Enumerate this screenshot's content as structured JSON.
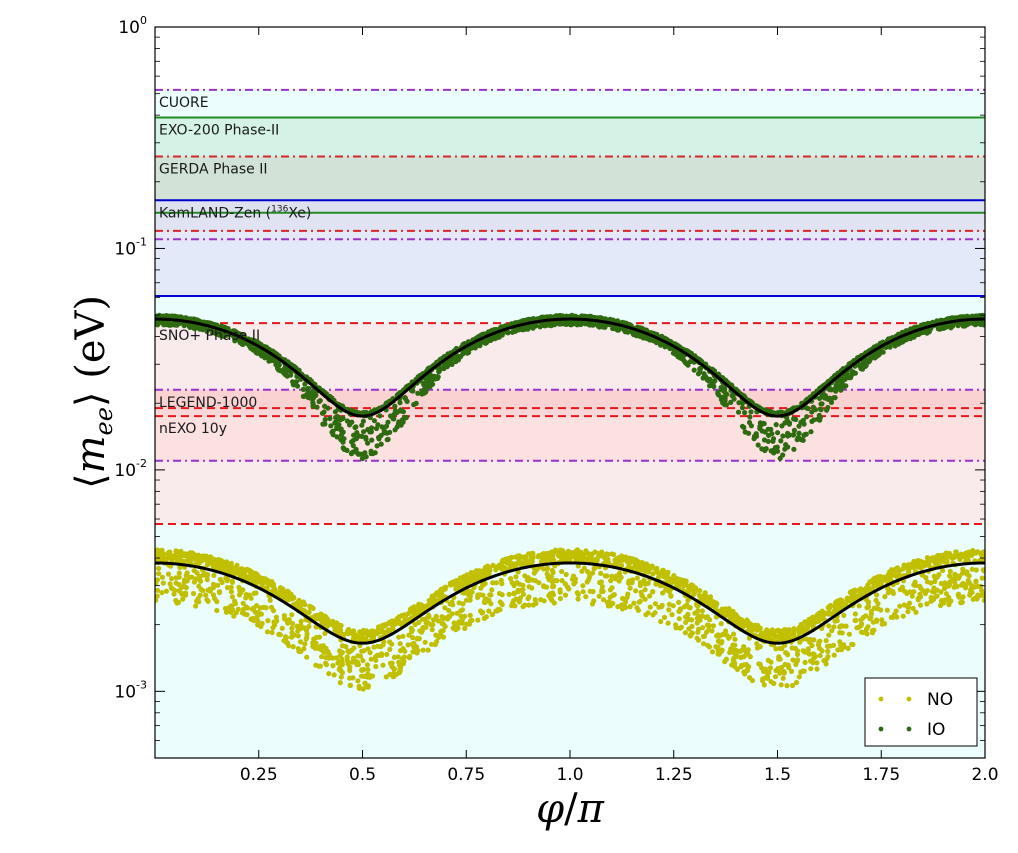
{
  "chart_data": {
    "type": "scatter",
    "xlabel": "φ/π",
    "ylabel": "⟨m_ee⟩ (eV)",
    "x_range": [
      0,
      2.0
    ],
    "y_range": [
      0.0005,
      1.0
    ],
    "y_scale": "log",
    "x_ticks": [
      {
        "value": 0.25,
        "label": "0.25"
      },
      {
        "value": 0.5,
        "label": "0.5"
      },
      {
        "value": 0.75,
        "label": "0.75"
      },
      {
        "value": 1.0,
        "label": "1.0"
      },
      {
        "value": 1.25,
        "label": "1.25"
      },
      {
        "value": 1.5,
        "label": "1.5"
      },
      {
        "value": 1.75,
        "label": "1.75"
      },
      {
        "value": 2.0,
        "label": "2.0"
      }
    ],
    "y_ticks": [
      {
        "value": 1.0,
        "base": "10",
        "exp": "0"
      },
      {
        "value": 0.1,
        "base": "10",
        "exp": "-1"
      },
      {
        "value": 0.01,
        "base": "10",
        "exp": "-2"
      },
      {
        "value": 0.001,
        "base": "10",
        "exp": "-3"
      }
    ],
    "bands": [
      {
        "label": "CUORE",
        "lower": 0.0,
        "upper": 0.52,
        "fill": "#e6fcfc",
        "edge": "#9932cc",
        "edge_style": "dashdot"
      },
      {
        "label": "EXO-200 Phase-II",
        "lower": 0.145,
        "upper": 0.39,
        "fill": "#cdeedd",
        "edge": "#228b22",
        "edge_style": "solid"
      },
      {
        "label": "GERDA Phase II",
        "lower": 0.12,
        "upper": 0.26,
        "fill": "#d2dcd2",
        "edge": "#d62728",
        "edge_style": "dashdot"
      },
      {
        "label": "KamLAND-Zen (",
        "label_sup": "136",
        "label_tail": "Xe)",
        "lower": 0.061,
        "upper": 0.165,
        "fill": "#e2e2f8",
        "edge": "#0000cd",
        "edge_style": "solid"
      },
      {
        "label": "SNO+ Phase II",
        "lower": 0.019,
        "upper": 0.046,
        "fill": "#fde4e4",
        "edge": "#e8161b",
        "edge_style": "dashed"
      },
      {
        "label": "LEGEND-1000",
        "lower": 0.011,
        "upper": 0.023,
        "fill": "#fbcaca",
        "edge": "#9932cc",
        "edge_style": "dashdot"
      },
      {
        "label": "nEXO 10y",
        "lower": 0.0057,
        "upper": 0.0175,
        "fill": "#fde4e4",
        "edge": "#e8161b",
        "edge_style": "dashed"
      }
    ],
    "extra_lines": [
      {
        "value": 0.11,
        "color": "#9932cc",
        "style": "dashdot"
      }
    ],
    "series": [
      {
        "name": "NO",
        "color": "#c0c000",
        "central": {
          "max": 0.0038,
          "min": 0.00165
        },
        "scatter_upper_factor": 1.15,
        "scatter_lower_factor": 0.66,
        "scatter_lower_factor_at_min": 0.62
      },
      {
        "name": "IO",
        "color": "#2e6b10",
        "central": {
          "max": 0.048,
          "min": 0.0175
        },
        "scatter_upper_factor": 1.04,
        "scatter_lower_factor": 0.94,
        "scatter_lower_factor_at_min": 0.64
      }
    ],
    "legend": {
      "position": "bottom-right",
      "entries": [
        "NO",
        "IO"
      ]
    }
  }
}
